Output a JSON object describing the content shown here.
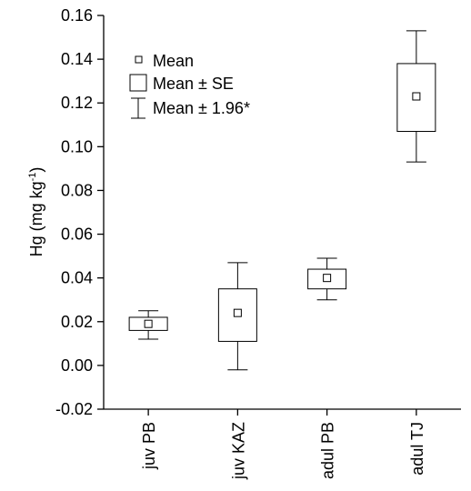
{
  "chart_data": {
    "type": "boxplot",
    "ylabel": "Hg (mg kg",
    "ylabel_sup": "-1",
    "ylabel_close": ")",
    "ylim": [
      -0.02,
      0.16
    ],
    "yticks": [
      -0.02,
      0.0,
      0.02,
      0.04,
      0.06,
      0.08,
      0.1,
      0.12,
      0.14,
      0.16
    ],
    "ytick_labels": [
      "-0.02",
      "0.00",
      "0.02",
      "0.04",
      "0.06",
      "0.08",
      "0.10",
      "0.12",
      "0.14",
      "0.16"
    ],
    "categories": [
      "juv PB",
      "juv KAZ",
      "adul PB",
      "adul TJ"
    ],
    "mean": [
      0.019,
      0.024,
      0.04,
      0.123
    ],
    "se_low": [
      0.016,
      0.011,
      0.035,
      0.107
    ],
    "se_high": [
      0.022,
      0.035,
      0.044,
      0.138
    ],
    "ci_low": [
      0.012,
      -0.002,
      0.03,
      0.093
    ],
    "ci_high": [
      0.025,
      0.047,
      0.049,
      0.153
    ],
    "legend": [
      {
        "symbol": "mean",
        "label": "Mean"
      },
      {
        "symbol": "box",
        "label": "Mean ± SE"
      },
      {
        "symbol": "whisker",
        "label": "Mean ± 1.96*"
      }
    ],
    "legend_position": "top-left"
  }
}
